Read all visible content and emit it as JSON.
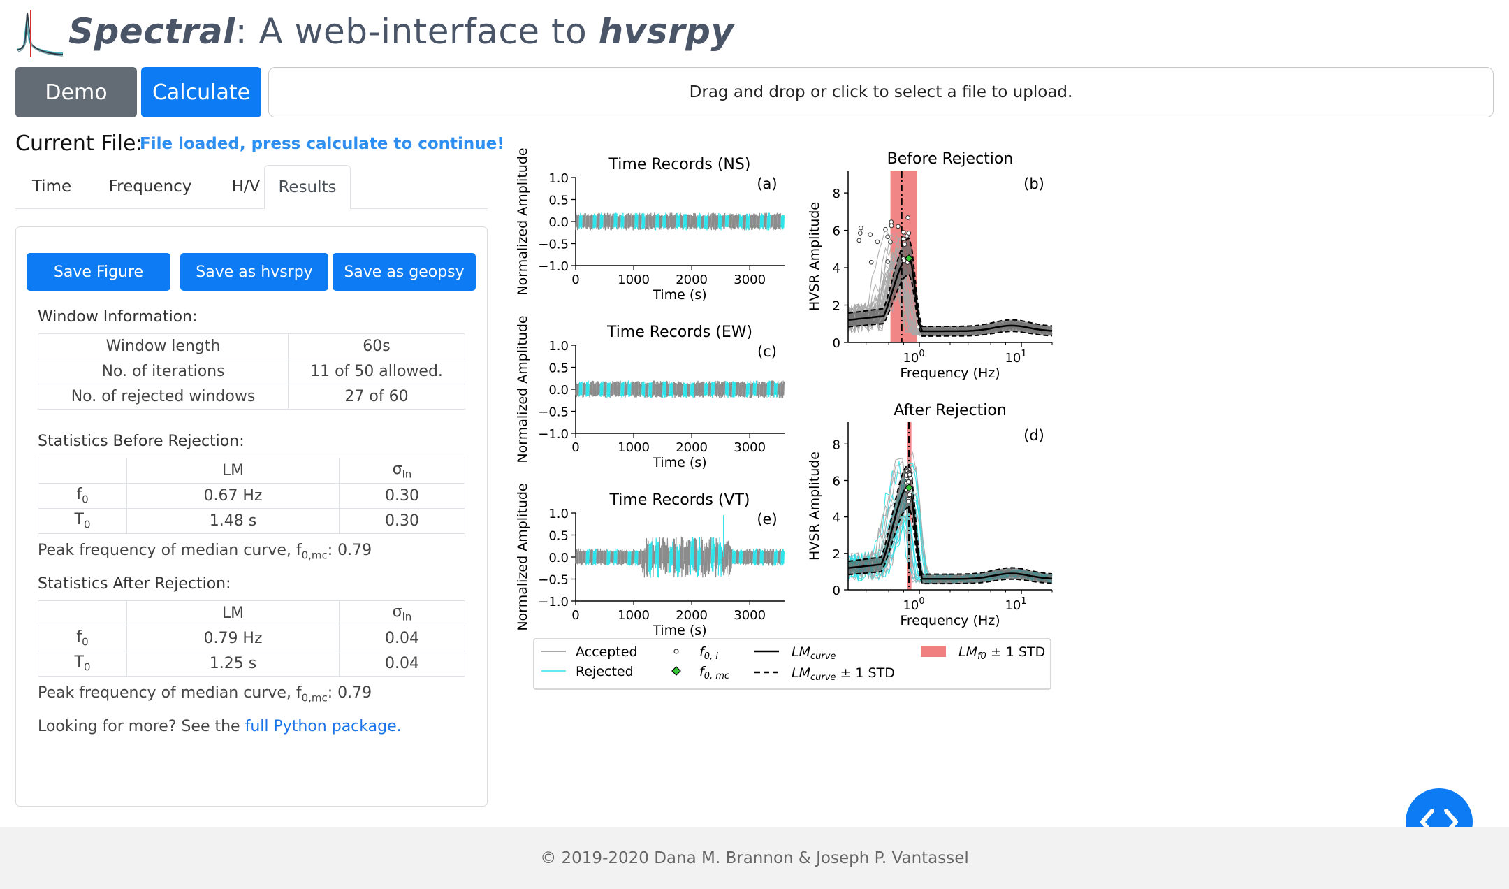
{
  "header": {
    "title_app": "Spectral",
    "title_mid": ": A web-interface to ",
    "title_pkg": "hvsrpy"
  },
  "actions": {
    "demo_label": "Demo",
    "calculate_label": "Calculate",
    "upload_text": "Drag and drop or click to select a file to upload."
  },
  "current_file": {
    "label": "Current File:",
    "status": "File loaded, press calculate to continue!"
  },
  "tabs": [
    {
      "label": "Time"
    },
    {
      "label": "Frequency"
    },
    {
      "label": "H/V"
    },
    {
      "label": "Results"
    }
  ],
  "results": {
    "save_figure": "Save Figure",
    "save_hvsrpy": "Save as hvsrpy",
    "save_geopsy": "Save as geopsy",
    "window_info_title": "Window Information:",
    "window_info": [
      {
        "label": "Window length",
        "value": "60s"
      },
      {
        "label": "No. of iterations",
        "value": "11 of 50 allowed."
      },
      {
        "label": "No. of rejected windows",
        "value": "27 of 60"
      }
    ],
    "before_title": "Statistics Before Rejection:",
    "after_title": "Statistics After Rejection:",
    "col_lm": "LM",
    "col_sigma": "σ",
    "col_sigma_sub": "ln",
    "before": [
      {
        "param": "f",
        "sub": "0",
        "lm": "0.67 Hz",
        "sigma": "0.30"
      },
      {
        "param": "T",
        "sub": "0",
        "lm": "1.48 s",
        "sigma": "0.30"
      }
    ],
    "after": [
      {
        "param": "f",
        "sub": "0",
        "lm": "0.79 Hz",
        "sigma": "0.04"
      },
      {
        "param": "T",
        "sub": "0",
        "lm": "1.25 s",
        "sigma": "0.04"
      }
    ],
    "peak_label": "Peak frequency of median curve, f",
    "peak_sub": "0,mc",
    "peak_before": ": 0.79",
    "peak_after": ": 0.79",
    "more_text": "Looking for more? See the ",
    "more_link": "full Python package."
  },
  "figure": {
    "ts_titles": [
      "Time Records (NS)",
      "Time Records (EW)",
      "Time Records (VT)"
    ],
    "ts_panel_labels": [
      "(a)",
      "(c)",
      "(e)"
    ],
    "ts_ylabel": "Normalized Amplitude",
    "ts_xlabel": "Time (s)",
    "ts_yticks": [
      "1.0",
      "0.5",
      "0.0",
      "−0.5",
      "−1.0"
    ],
    "ts_xticks": [
      "0",
      "1000",
      "2000",
      "3000"
    ],
    "hv_titles": [
      "Before Rejection",
      "After Rejection"
    ],
    "hv_panel_labels": [
      "(b)",
      "(d)"
    ],
    "hv_ylabel": "HVSR Amplitude",
    "hv_xlabel": "Frequency (Hz)",
    "hv_yticks": [
      "8",
      "6",
      "4",
      "2",
      "0"
    ],
    "legend": {
      "accepted": "Accepted",
      "rejected": "Rejected",
      "f0i": "f",
      "f0i_sub": "0, i",
      "f0mc": "f",
      "f0mc_sub": "0, mc",
      "lm_curve": "LM",
      "lm_curve_sub": "curve",
      "lm_curve_std": "LM",
      "lm_curve_std_sub": "curve",
      "std_suffix": " ± 1 STD",
      "lm_f0": "LM",
      "lm_f0_sub": "f0"
    },
    "colors": {
      "accepted": "#8c8c8c",
      "rejected": "#2ee3ea",
      "f0_band": "#f08080",
      "median": "#000000",
      "f0mc": "#35c435"
    }
  },
  "footer": {
    "text": "© 2019-2020 Dana M. Brannon & Joseph P. Vantassel"
  }
}
